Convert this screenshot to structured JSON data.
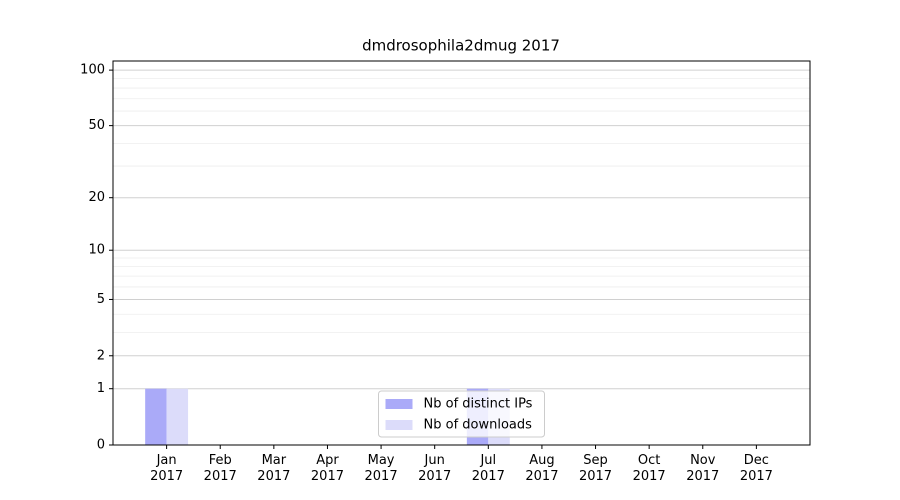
{
  "chart_data": {
    "type": "bar",
    "title": "dmdrosophila2dmug 2017",
    "categories": [
      "Jan 2017",
      "Feb 2017",
      "Mar 2017",
      "Apr 2017",
      "May 2017",
      "Jun 2017",
      "Jul 2017",
      "Aug 2017",
      "Sep 2017",
      "Oct 2017",
      "Nov 2017",
      "Dec 2017"
    ],
    "series": [
      {
        "name": "Nb of distinct IPs",
        "color": "#aaaaf8",
        "values": [
          1,
          0,
          0,
          0,
          0,
          0,
          1,
          0,
          0,
          0,
          0,
          0
        ]
      },
      {
        "name": "Nb of downloads",
        "color": "#dcdcfa",
        "values": [
          1,
          0,
          0,
          0,
          0,
          0,
          1,
          0,
          0,
          0,
          0,
          0
        ]
      }
    ],
    "yscale": "log1p",
    "ylim": [
      0,
      112
    ],
    "yticks": [
      0,
      1,
      2,
      5,
      10,
      20,
      50,
      100
    ],
    "minor_yticks": [
      3,
      4,
      6,
      7,
      8,
      9,
      30,
      40,
      60,
      70,
      80,
      90
    ],
    "grid": true,
    "legend": "lower center"
  }
}
